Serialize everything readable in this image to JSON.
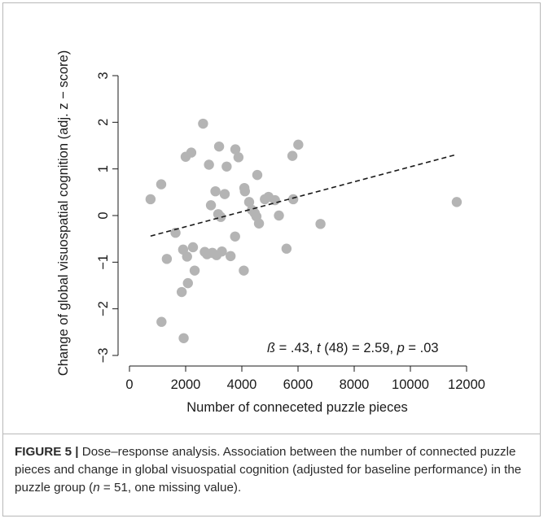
{
  "chart_data": {
    "type": "scatter",
    "xlabel": "Number of conneceted puzzle pieces",
    "ylabel": "Change of global visuospatial cognition  (adj. z − score)",
    "xlim": [
      0,
      12000
    ],
    "ylim": [
      -3,
      3
    ],
    "x_ticks": [
      0,
      2000,
      4000,
      6000,
      8000,
      10000,
      12000
    ],
    "y_ticks": [
      -3,
      -2,
      -1,
      0,
      1,
      2,
      3
    ],
    "x_tick_labels": [
      "0",
      "2000",
      "4000",
      "6000",
      "8000",
      "10000",
      "12000"
    ],
    "y_tick_labels": [
      "−3",
      "−2",
      "−1",
      "0",
      "1",
      "2",
      "3"
    ],
    "grid": false,
    "point_color": "#b4b4b4",
    "line_color": "#1a1a1a",
    "points": [
      {
        "x": 750,
        "y": 0.35
      },
      {
        "x": 1130,
        "y": 0.67
      },
      {
        "x": 1140,
        "y": -2.28
      },
      {
        "x": 1330,
        "y": -0.93
      },
      {
        "x": 1640,
        "y": -0.37
      },
      {
        "x": 1860,
        "y": -1.64
      },
      {
        "x": 1910,
        "y": -0.73
      },
      {
        "x": 1930,
        "y": -2.63
      },
      {
        "x": 2000,
        "y": 1.26
      },
      {
        "x": 2050,
        "y": -0.88
      },
      {
        "x": 2080,
        "y": -1.45
      },
      {
        "x": 2200,
        "y": 1.35
      },
      {
        "x": 2260,
        "y": -0.68
      },
      {
        "x": 2320,
        "y": -1.18
      },
      {
        "x": 2620,
        "y": 1.97
      },
      {
        "x": 2680,
        "y": -0.78
      },
      {
        "x": 2760,
        "y": -0.83
      },
      {
        "x": 2830,
        "y": 1.09
      },
      {
        "x": 2900,
        "y": 0.22
      },
      {
        "x": 2950,
        "y": -0.8
      },
      {
        "x": 3060,
        "y": 0.52
      },
      {
        "x": 3100,
        "y": -0.85
      },
      {
        "x": 3160,
        "y": 0.03
      },
      {
        "x": 3190,
        "y": 1.48
      },
      {
        "x": 3250,
        "y": -0.03
      },
      {
        "x": 3290,
        "y": -0.77
      },
      {
        "x": 3390,
        "y": 0.46
      },
      {
        "x": 3460,
        "y": 1.05
      },
      {
        "x": 3600,
        "y": -0.87
      },
      {
        "x": 3760,
        "y": -0.45
      },
      {
        "x": 3770,
        "y": 1.42
      },
      {
        "x": 3880,
        "y": 1.25
      },
      {
        "x": 4070,
        "y": -1.18
      },
      {
        "x": 4090,
        "y": 0.59
      },
      {
        "x": 4110,
        "y": 0.52
      },
      {
        "x": 4260,
        "y": 0.29
      },
      {
        "x": 4360,
        "y": 0.12
      },
      {
        "x": 4460,
        "y": 0.05
      },
      {
        "x": 4520,
        "y": -0.02
      },
      {
        "x": 4550,
        "y": 0.87
      },
      {
        "x": 4610,
        "y": -0.17
      },
      {
        "x": 4820,
        "y": 0.35
      },
      {
        "x": 4950,
        "y": 0.4
      },
      {
        "x": 5180,
        "y": 0.33
      },
      {
        "x": 5320,
        "y": 0.0
      },
      {
        "x": 5590,
        "y": -0.71
      },
      {
        "x": 5800,
        "y": 1.28
      },
      {
        "x": 5830,
        "y": 0.35
      },
      {
        "x": 6010,
        "y": 1.52
      },
      {
        "x": 6800,
        "y": -0.18
      },
      {
        "x": 11650,
        "y": 0.29
      }
    ],
    "regression_line": {
      "x": [
        750,
        11650
      ],
      "y": [
        -0.44,
        1.31
      ],
      "style": "dashed"
    },
    "annotation": {
      "beta_symbol": "ß",
      "beta_rest": " = .43, ",
      "t_symbol": "t",
      "t_rest": " (48) = 2.59,  ",
      "p_symbol": "p",
      "p_rest": " = .03"
    }
  },
  "caption": {
    "label": "FIGURE 5 |",
    "text_1": " Dose–response analysis. Association between the number of connected puzzle pieces and change in global visuospatial cognition (adjusted for baseline performance) in the puzzle group (",
    "n_symbol": "n",
    "text_2": " = 51, one missing value)."
  }
}
